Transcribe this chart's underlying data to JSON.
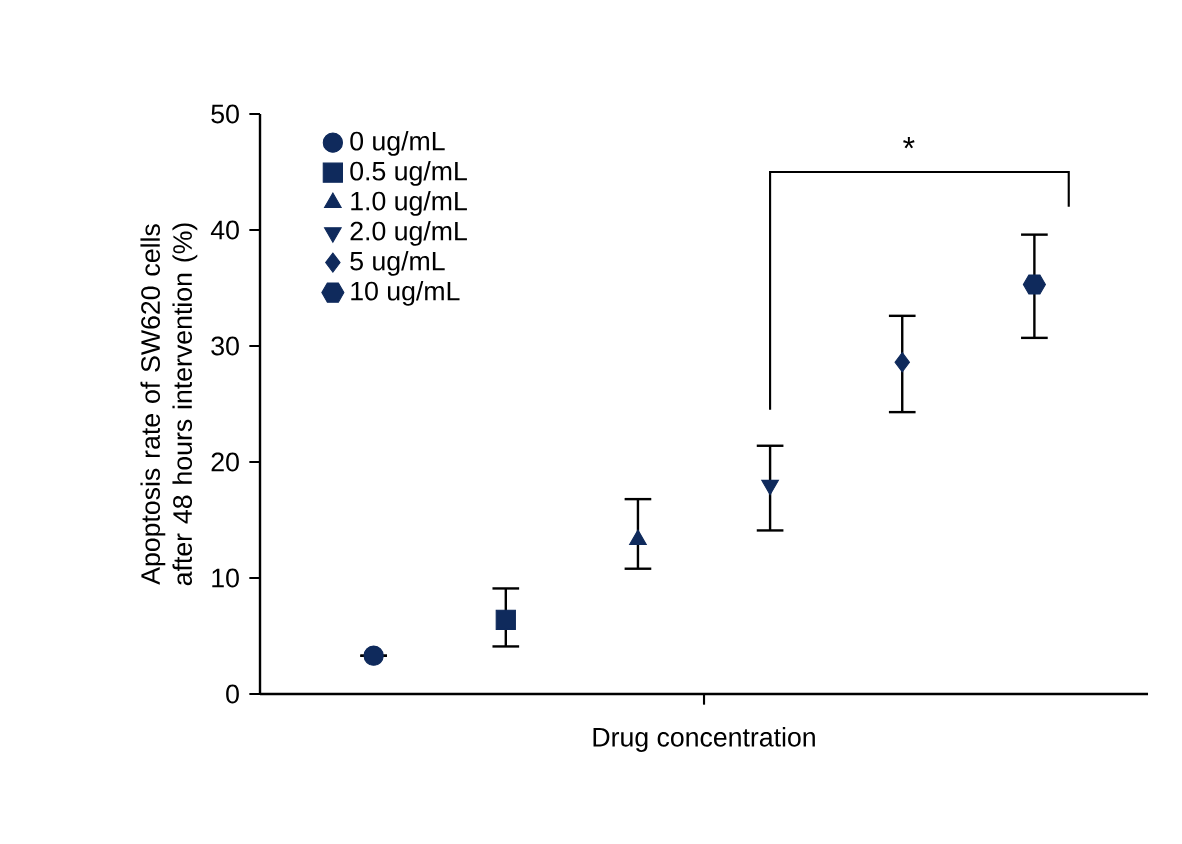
{
  "chart_data": {
    "type": "scatter",
    "ylabel": "Apoptosis rate of SW620 cells after 48 hours intervention (%)",
    "xlabel": "Drug concentration",
    "categories": [
      null,
      null,
      null,
      null,
      null,
      null
    ],
    "ylim": [
      0,
      50
    ],
    "yticks": [
      0,
      10,
      20,
      30,
      40,
      50
    ],
    "tick_labels": "y",
    "legend": "top left",
    "grid": false,
    "series": [
      {
        "name": "0 ug/mL",
        "color": "#0f2a5c",
        "marker": "circle",
        "values": [
          3.3,
          null,
          null,
          null,
          null,
          null
        ],
        "errors": [
          null,
          null,
          null,
          null,
          null,
          null
        ]
      },
      {
        "name": "0.5 ug/mL",
        "color": "#0f2a5c",
        "marker": "square",
        "values": [
          null,
          6.4,
          null,
          null,
          null,
          null
        ],
        "errors": [
          null,
          [
            4.1,
            9.1
          ],
          null,
          null,
          null,
          null
        ]
      },
      {
        "name": "1.0 ug/mL",
        "color": "#0f2a5c",
        "marker": "triangle",
        "values": [
          null,
          null,
          13.3,
          null,
          null,
          null
        ],
        "errors": [
          null,
          null,
          [
            10.8,
            16.8
          ],
          null,
          null,
          null
        ]
      },
      {
        "name": "2.0 ug/mL",
        "color": "#0f2a5c",
        "marker": "triangle_down",
        "values": [
          null,
          null,
          null,
          18.0,
          null,
          null
        ],
        "errors": [
          null,
          null,
          null,
          [
            14.1,
            21.4
          ],
          null,
          null
        ]
      },
      {
        "name": "5 ug/mL",
        "color": "#0f2a5c",
        "marker": "diamond",
        "values": [
          null,
          null,
          null,
          null,
          28.6,
          null
        ],
        "errors": [
          null,
          null,
          null,
          null,
          [
            24.3,
            32.6
          ],
          null
        ]
      },
      {
        "name": "10 ug/mL",
        "color": "#0f2a5c",
        "values": [
          null,
          null,
          null,
          null,
          null,
          35.3
        ],
        "errors": [
          null,
          null,
          null,
          null,
          null,
          [
            30.7,
            39.6
          ]
        ]
      }
    ],
    "annotations": [
      "*"
    ]
  }
}
